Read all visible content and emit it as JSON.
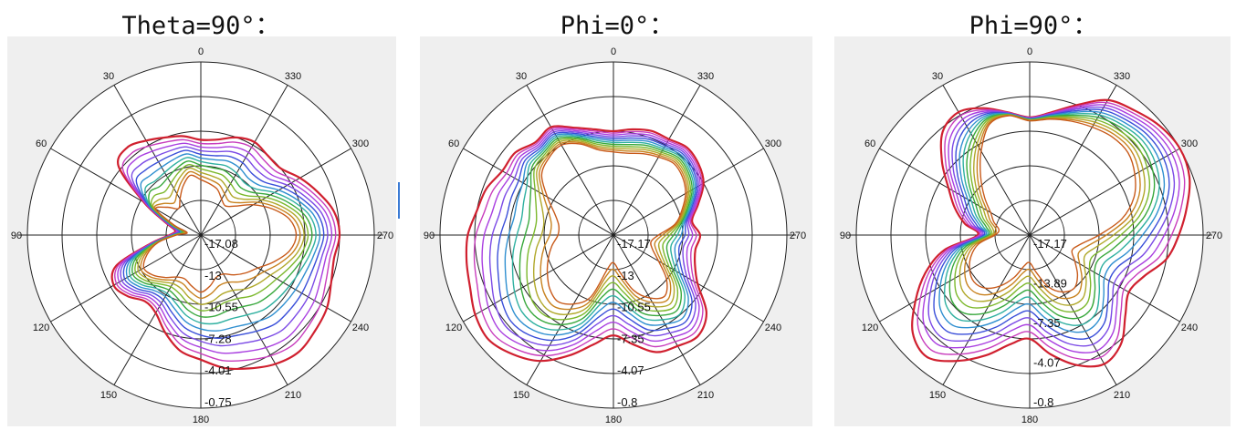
{
  "chart_data": [
    {
      "type": "polar-line",
      "title": "Theta=90°：",
      "angle_labels": [
        "0",
        "30",
        "60",
        "90",
        "120",
        "150",
        "180",
        "210",
        "240",
        "270",
        "300",
        "330"
      ],
      "radial_labels": [
        "-17.08",
        "-13",
        "-10.55",
        "-7.28",
        "-4.01",
        "-0.75"
      ],
      "radial_range": [
        -17.08,
        -0.75
      ],
      "grid": true,
      "angle_direction": "counter-clockwise, 0 at top, 90 at left",
      "series_colors": [
        "#d0202f",
        "#c83dbd",
        "#a93ee0",
        "#7b4ae6",
        "#3a4fd9",
        "#2f8fd0",
        "#2fb0a0",
        "#38a83c",
        "#7cb82c",
        "#b0a82a",
        "#c8821f",
        "#c85a1a"
      ],
      "radius_deg_step": 10,
      "outer_curve_by_angle": [
        0.55,
        0.58,
        0.6,
        0.63,
        0.66,
        0.62,
        0.38,
        0.22,
        0.15,
        0.18,
        0.3,
        0.52,
        0.58,
        0.55,
        0.5,
        0.52,
        0.6,
        0.68,
        0.72,
        0.78,
        0.82,
        0.86,
        0.88,
        0.86,
        0.84,
        0.8,
        0.78,
        0.8,
        0.78,
        0.72,
        0.66,
        0.6,
        0.6,
        0.62,
        0.6,
        0.56
      ],
      "inner_curve_by_angle": [
        0.32,
        0.35,
        0.3,
        0.24,
        0.2,
        0.25,
        0.3,
        0.16,
        0.08,
        0.14,
        0.25,
        0.33,
        0.38,
        0.36,
        0.32,
        0.28,
        0.27,
        0.3,
        0.33,
        0.3,
        0.26,
        0.26,
        0.3,
        0.34,
        0.38,
        0.45,
        0.52,
        0.55,
        0.52,
        0.44,
        0.35,
        0.26,
        0.22,
        0.24,
        0.28,
        0.3
      ]
    },
    {
      "type": "polar-line",
      "title": "Phi=0°：",
      "angle_labels": [
        "0",
        "30",
        "60",
        "90",
        "120",
        "150",
        "180",
        "210",
        "240",
        "270",
        "300",
        "330"
      ],
      "radial_labels": [
        "-17.17",
        "-13",
        "-10.55",
        "-7.35",
        "-4.07",
        "-0.8"
      ],
      "radial_range": [
        -17.17,
        -0.8
      ],
      "grid": true,
      "angle_direction": "counter-clockwise, 0 at top, 90 at left",
      "series_colors": [
        "#d0202f",
        "#c83dbd",
        "#a93ee0",
        "#7b4ae6",
        "#3a4fd9",
        "#2f8fd0",
        "#2fb0a0",
        "#38a83c",
        "#7cb82c",
        "#b0a82a",
        "#c8821f",
        "#c85a1a"
      ],
      "radius_deg_step": 10,
      "outer_curve_by_angle": [
        0.6,
        0.62,
        0.66,
        0.72,
        0.7,
        0.74,
        0.74,
        0.78,
        0.8,
        0.84,
        0.86,
        0.88,
        0.92,
        0.94,
        0.9,
        0.84,
        0.74,
        0.64,
        0.58,
        0.64,
        0.72,
        0.74,
        0.76,
        0.7,
        0.56,
        0.5,
        0.48,
        0.5,
        0.46,
        0.52,
        0.6,
        0.64,
        0.66,
        0.64,
        0.64,
        0.62
      ],
      "inner_curve_by_angle": [
        0.48,
        0.5,
        0.56,
        0.6,
        0.58,
        0.54,
        0.44,
        0.36,
        0.32,
        0.32,
        0.36,
        0.4,
        0.44,
        0.48,
        0.5,
        0.46,
        0.38,
        0.2,
        0.16,
        0.22,
        0.34,
        0.42,
        0.46,
        0.4,
        0.3,
        0.24,
        0.22,
        0.26,
        0.36,
        0.42,
        0.48,
        0.52,
        0.54,
        0.52,
        0.5,
        0.48
      ]
    },
    {
      "type": "polar-line",
      "title": "Phi=90°：",
      "angle_labels": [
        "0",
        "30",
        "60",
        "90",
        "120",
        "150",
        "180",
        "210",
        "240",
        "270",
        "300",
        "330"
      ],
      "radial_labels": [
        "-17.17",
        "-13.89",
        "-7.35",
        "-4.07",
        "-0.8"
      ],
      "radial_range": [
        -17.17,
        -0.8
      ],
      "grid": true,
      "angle_direction": "counter-clockwise, 0 at top, 90 at left",
      "series_colors": [
        "#d0202f",
        "#c83dbd",
        "#a93ee0",
        "#7b4ae6",
        "#3a4fd9",
        "#2f8fd0",
        "#2fb0a0",
        "#38a83c",
        "#7cb82c",
        "#b0a82a",
        "#c8821f",
        "#c85a1a"
      ],
      "radius_deg_step": 10,
      "outer_curve_by_angle": [
        0.68,
        0.72,
        0.78,
        0.82,
        0.78,
        0.66,
        0.54,
        0.46,
        0.38,
        0.3,
        0.5,
        0.64,
        0.76,
        0.88,
        0.92,
        0.84,
        0.74,
        0.64,
        0.6,
        0.7,
        0.8,
        0.86,
        0.82,
        0.72,
        0.66,
        0.7,
        0.8,
        0.86,
        0.92,
        0.98,
        1.0,
        0.98,
        0.94,
        0.9,
        0.8,
        0.72
      ],
      "inner_curve_by_angle": [
        0.66,
        0.7,
        0.68,
        0.56,
        0.44,
        0.34,
        0.26,
        0.22,
        0.18,
        0.2,
        0.3,
        0.36,
        0.4,
        0.42,
        0.4,
        0.34,
        0.26,
        0.18,
        0.16,
        0.22,
        0.32,
        0.38,
        0.4,
        0.36,
        0.3,
        0.26,
        0.3,
        0.4,
        0.54,
        0.64,
        0.7,
        0.74,
        0.74,
        0.72,
        0.7,
        0.68
      ]
    }
  ]
}
